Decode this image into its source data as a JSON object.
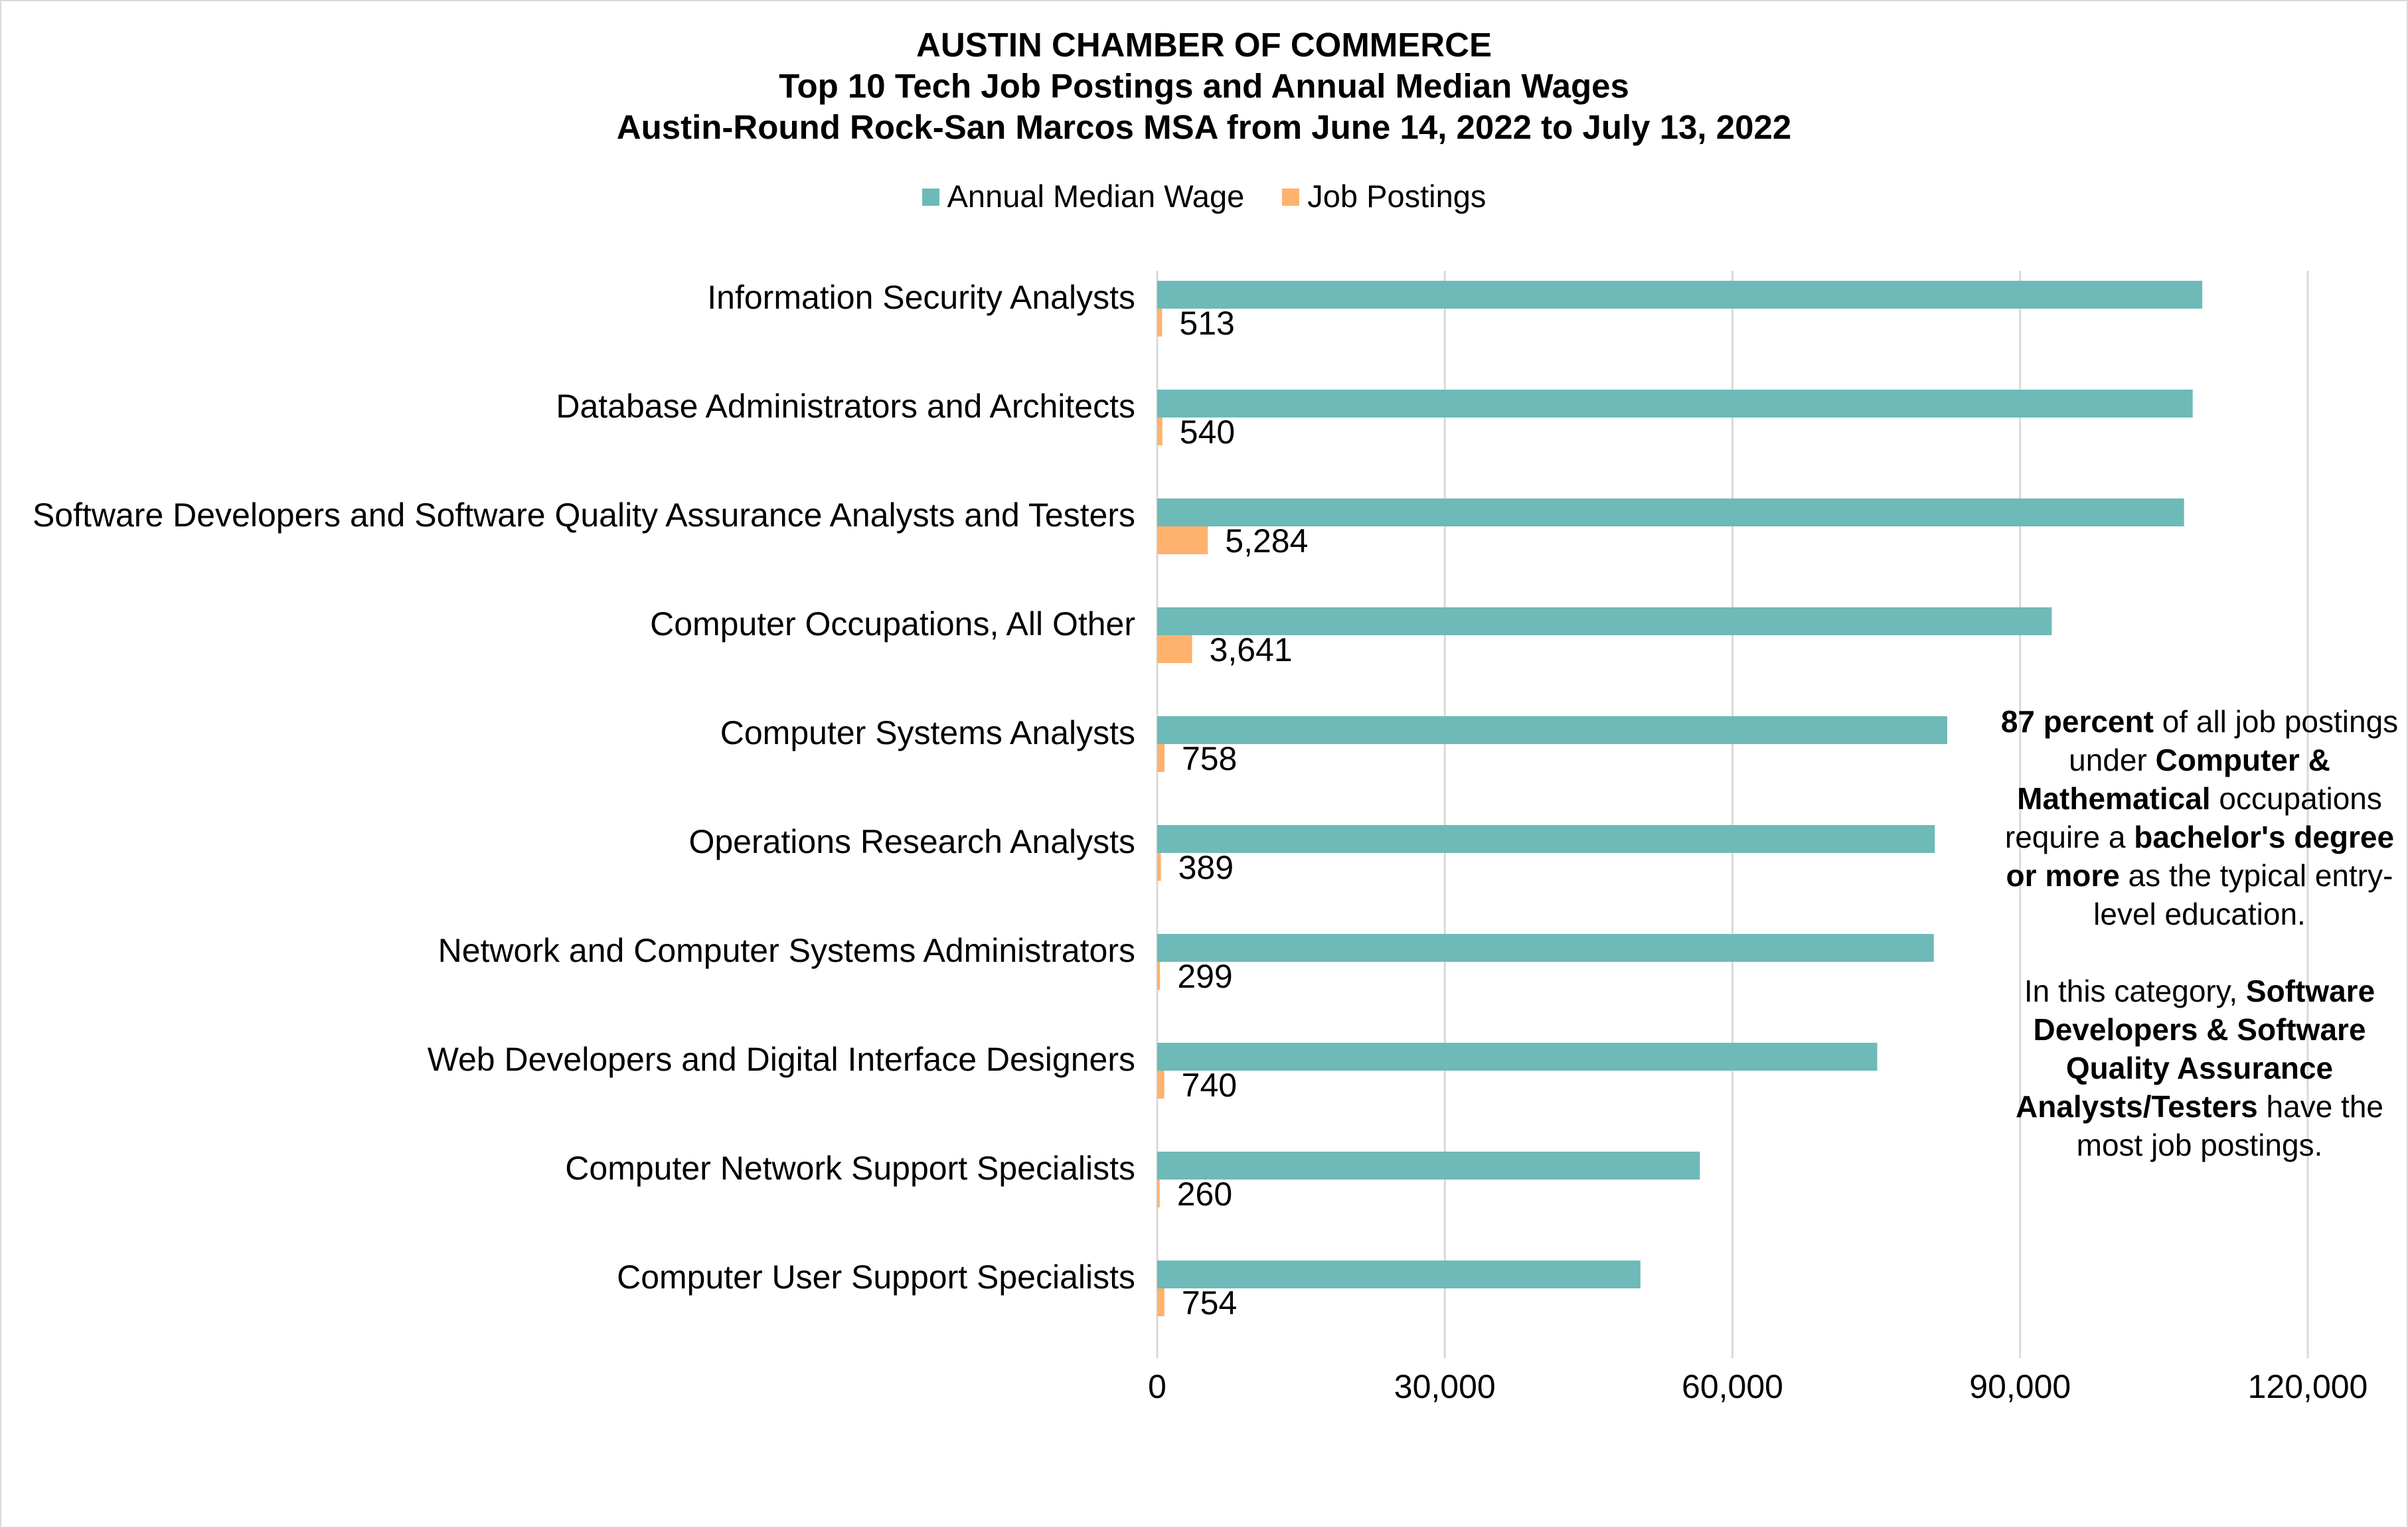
{
  "chart_data": {
    "type": "bar",
    "orientation": "horizontal",
    "title": "AUSTIN CHAMBER OF COMMERCE",
    "subtitle": [
      "Top 10 Tech Job Postings and Annual Median Wages",
      "Austin-Round Rock-San Marcos MSA from June 14, 2022 to July 13, 2022"
    ],
    "categories": [
      "Information Security Analysts",
      "Database Administrators and Architects",
      "Software Developers and Software Quality Assurance Analysts and Testers",
      "Computer Occupations, All Other",
      "Computer Systems Analysts",
      "Operations Research Analysts",
      "Network and Computer Systems Administrators",
      "Web Developers and Digital Interface Designers",
      "Computer Network Support Specialists",
      "Computer User Support Specialists"
    ],
    "series": [
      {
        "name": "Annual Median Wage",
        "color": "#6dbab8",
        "values": [
          109000,
          108000,
          107100,
          93300,
          82400,
          81100,
          81000,
          75100,
          56600,
          50400
        ]
      },
      {
        "name": "Job Postings",
        "color": "#ffb26e",
        "values": [
          513,
          540,
          5284,
          3641,
          758,
          389,
          299,
          740,
          260,
          754
        ],
        "data_labels": [
          "513",
          "540",
          "5,284",
          "3,641",
          "758",
          "389",
          "299",
          "740",
          "260",
          "754"
        ]
      }
    ],
    "xlim": [
      0,
      120000
    ],
    "xticks": [
      0,
      30000,
      60000,
      90000,
      120000
    ],
    "xtick_labels": [
      "0",
      "30,000",
      "60,000",
      "90,000",
      "120,000"
    ],
    "grid": true,
    "legend": "top"
  },
  "annotation": {
    "p1": [
      {
        "text": "87 percent",
        "bold": true
      },
      {
        "text": " of all job postings under ",
        "bold": false
      },
      {
        "text": "Computer & Mathematical",
        "bold": true
      },
      {
        "text": " occupations require a ",
        "bold": false
      },
      {
        "text": "bachelor's degree or more",
        "bold": true
      },
      {
        "text": " as the typical entry-level education.",
        "bold": false
      }
    ],
    "p2": [
      {
        "text": "In this category, ",
        "bold": false
      },
      {
        "text": "Software Developers & Software Quality Assurance Analysts/Testers",
        "bold": true
      },
      {
        "text": " have the most job postings.",
        "bold": false
      }
    ]
  }
}
